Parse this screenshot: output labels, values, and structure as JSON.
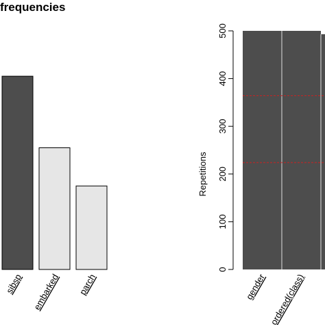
{
  "chart_data": [
    {
      "type": "bar",
      "title": "frequencies",
      "categories": [
        "sibsp",
        "embarked",
        "parch"
      ],
      "values": [
        405,
        255,
        175
      ],
      "ylim": [
        0,
        500
      ],
      "colors": [
        "#4d4d4d",
        "#e6e6e6",
        "#e6e6e6"
      ],
      "grid": false
    },
    {
      "type": "bar",
      "title": "",
      "ylabel": "Repetitions",
      "yticks": [
        "0",
        "100",
        "200",
        "300",
        "400",
        "500"
      ],
      "ylim": [
        0,
        500
      ],
      "categories": [
        "gender",
        "ordered(class)",
        ""
      ],
      "values": [
        500,
        500,
        493
      ],
      "reference_lines": [
        364,
        224
      ],
      "colors": {
        "bar": "#4d4d4d",
        "separator": "#c8c8c8",
        "reference_line": "#cc2222"
      }
    }
  ]
}
